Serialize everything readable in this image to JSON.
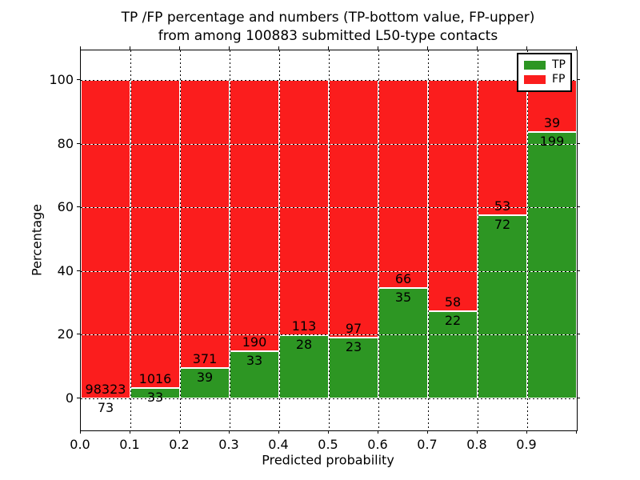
{
  "figure": {
    "title_line1": "TP /FP percentage and numbers (TP-bottom value, FP-upper)",
    "title_line2": "from among 100883 submitted L50-type contacts"
  },
  "chart_data": {
    "type": "bar",
    "stacked": true,
    "normalized": "each bin scaled to 100%, labels show raw counts",
    "title": "TP /FP percentage and numbers (TP-bottom value, FP-upper) from among 100883 submitted L50-type contacts",
    "xlabel": "Predicted probability",
    "ylabel": "Percentage",
    "total_contacts": 100883,
    "bin_width": 0.1,
    "bin_starts": [
      0.0,
      0.1,
      0.2,
      0.3,
      0.4,
      0.5,
      0.6,
      0.7,
      0.8,
      0.9
    ],
    "x_ticks": [
      "0.0",
      "0.1",
      "0.2",
      "0.3",
      "0.4",
      "0.5",
      "0.6",
      "0.7",
      "0.8",
      "0.9"
    ],
    "y_ticks": [
      0,
      20,
      40,
      60,
      80,
      100
    ],
    "xlim": [
      0.0,
      1.0
    ],
    "ylim": [
      -10,
      110
    ],
    "grid": {
      "style": "dotted",
      "color": "#000000"
    },
    "series": [
      {
        "name": "TP",
        "color": "#2d9623",
        "counts": [
          73,
          33,
          39,
          33,
          28,
          23,
          35,
          22,
          72,
          199
        ]
      },
      {
        "name": "FP",
        "color": "#fb1d1d",
        "counts": [
          98323,
          1016,
          371,
          190,
          113,
          97,
          66,
          58,
          53,
          39
        ]
      }
    ],
    "tp_percent_by_bin": [
      0.07,
      3.15,
      9.51,
      14.8,
      19.86,
      19.17,
      34.65,
      27.5,
      57.6,
      83.61
    ],
    "legend": {
      "position": "upper right",
      "entries": [
        "TP",
        "FP"
      ]
    }
  }
}
